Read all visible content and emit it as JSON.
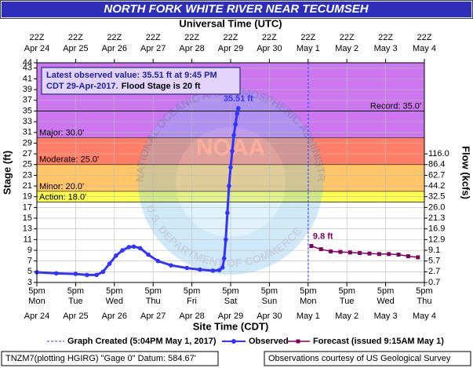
{
  "chart_data": {
    "type": "hydrograph",
    "title": "NORTH FORK WHITE RIVER NEAR TECUMSEH",
    "x2_label": "Universal Time (UTC)",
    "x_label": "Site Time (CDT)",
    "y_label": "Stage (ft)",
    "y2_label": "Flow (kcfs)",
    "xlim": [
      "2017-04-24 17:00",
      "2017-05-04 17:00"
    ],
    "ylim": [
      3,
      44
    ],
    "grid": true,
    "yticks": [
      3,
      5,
      7,
      9,
      11,
      13,
      15,
      17,
      19,
      21,
      23,
      25,
      27,
      29,
      31,
      33,
      35,
      37,
      39,
      41,
      43,
      44
    ],
    "flow_ticks": [
      {
        "value": 3,
        "label": "0.7"
      },
      {
        "value": 5,
        "label": "2.7"
      },
      {
        "value": 7,
        "label": "5.7"
      },
      {
        "value": 9,
        "label": "9.1"
      },
      {
        "value": 11,
        "label": "12.9"
      },
      {
        "value": 13,
        "label": "16.9"
      },
      {
        "value": 15,
        "label": "21.3"
      },
      {
        "value": 17,
        "label": "26.0"
      },
      {
        "value": 19,
        "label": "32.5"
      },
      {
        "value": 21,
        "label": "44.2"
      },
      {
        "value": 23,
        "label": "62.7"
      },
      {
        "value": 25,
        "label": "86.4"
      },
      {
        "value": 27,
        "label": "116.0"
      }
    ],
    "xticks": [
      {
        "value": "2017-04-24 17:00",
        "label": "5pm",
        "day": "Mon",
        "date": "Apr 24"
      },
      {
        "value": "2017-04-25 17:00",
        "label": "5pm",
        "day": "Tue",
        "date": "Apr 25"
      },
      {
        "value": "2017-04-26 17:00",
        "label": "5pm",
        "day": "Wed",
        "date": "Apr 26"
      },
      {
        "value": "2017-04-27 17:00",
        "label": "5pm",
        "day": "Thu",
        "date": "Apr 27"
      },
      {
        "value": "2017-04-28 17:00",
        "label": "5pm",
        "day": "Fri",
        "date": "Apr 28"
      },
      {
        "value": "2017-04-29 17:00",
        "label": "5pm",
        "day": "Sat",
        "date": "Apr 29"
      },
      {
        "value": "2017-04-30 17:00",
        "label": "5pm",
        "day": "Sun",
        "date": "Apr 30"
      },
      {
        "value": "2017-05-01 17:00",
        "label": "5pm",
        "day": "Mon",
        "date": "May 1"
      },
      {
        "value": "2017-05-02 17:00",
        "label": "5pm",
        "day": "Tue",
        "date": "May 2"
      },
      {
        "value": "2017-05-03 17:00",
        "label": "5pm",
        "day": "Wed",
        "date": "May 3"
      },
      {
        "value": "2017-05-04 17:00",
        "label": "5pm",
        "day": "Thu",
        "date": "May 4"
      }
    ],
    "x2ticks": [
      {
        "value": "2017-04-24 17:00",
        "label": "22Z",
        "date": "Apr 24"
      },
      {
        "value": "2017-04-25 17:00",
        "label": "22Z",
        "date": "Apr 25"
      },
      {
        "value": "2017-04-26 17:00",
        "label": "22Z",
        "date": "Apr 26"
      },
      {
        "value": "2017-04-27 17:00",
        "label": "22Z",
        "date": "Apr 27"
      },
      {
        "value": "2017-04-28 17:00",
        "label": "22Z",
        "date": "Apr 28"
      },
      {
        "value": "2017-04-29 17:00",
        "label": "22Z",
        "date": "Apr 29"
      },
      {
        "value": "2017-04-30 17:00",
        "label": "22Z",
        "date": "Apr 30"
      },
      {
        "value": "2017-05-01 17:00",
        "label": "22Z",
        "date": "May 1"
      },
      {
        "value": "2017-05-02 17:00",
        "label": "22Z",
        "date": "May 2"
      },
      {
        "value": "2017-05-03 17:00",
        "label": "22Z",
        "date": "May 3"
      },
      {
        "value": "2017-05-04 17:00",
        "label": "22Z",
        "date": "May 4"
      }
    ],
    "flood_categories": [
      {
        "label": "Action: 18.0'",
        "value": 18,
        "color": "#ffff4d"
      },
      {
        "label": "Minor: 20.0'",
        "value": 20,
        "color": "#ffc566"
      },
      {
        "label": "Moderate: 25.0'",
        "value": 25,
        "color": "#ff7f66"
      },
      {
        "label": "Major: 30.0'",
        "value": 30,
        "color": "#cc77f0"
      }
    ],
    "record": {
      "label": "Record: 35.0'",
      "value": 35
    },
    "graph_created": {
      "x": "2017-05-01 17:04",
      "label": "Graph Created (5:04PM May 1, 2017)"
    },
    "series": [
      {
        "name": "Observed",
        "color": "#3333ff",
        "x": [
          "2017-04-24 17:00",
          "2017-04-25 05:00",
          "2017-04-25 17:00",
          "2017-04-26 00:00",
          "2017-04-26 06:00",
          "2017-04-26 10:00",
          "2017-04-26 14:00",
          "2017-04-26 18:00",
          "2017-04-26 22:00",
          "2017-04-27 02:00",
          "2017-04-27 05:00",
          "2017-04-27 09:00",
          "2017-04-27 14:00",
          "2017-04-27 20:00",
          "2017-04-28 04:00",
          "2017-04-28 14:00",
          "2017-04-28 22:00",
          "2017-04-29 06:00",
          "2017-04-29 10:00",
          "2017-04-29 12:00",
          "2017-04-29 13:00",
          "2017-04-29 14:00",
          "2017-04-29 15:00",
          "2017-04-29 16:00",
          "2017-04-29 17:00",
          "2017-04-29 18:00",
          "2017-04-29 19:00",
          "2017-04-29 20:00",
          "2017-04-29 21:00",
          "2017-04-29 21:45"
        ],
        "values": [
          4.9,
          4.7,
          4.6,
          4.4,
          4.4,
          5.0,
          6.5,
          8.0,
          9.0,
          9.6,
          9.7,
          9.4,
          8.2,
          7.0,
          6.2,
          5.7,
          5.4,
          5.2,
          5.3,
          5.8,
          7.5,
          11,
          16,
          21,
          24.5,
          27.5,
          30.5,
          32.5,
          34.5,
          35.51
        ],
        "value_labels": [
          null,
          null,
          null,
          null,
          null,
          null,
          null,
          null,
          null,
          null,
          null,
          null,
          null,
          null,
          null,
          null,
          null,
          null,
          null,
          null,
          null,
          null,
          null,
          null,
          null,
          null,
          null,
          null,
          null,
          "35.51 ft"
        ]
      },
      {
        "name": "Forecast (issued 9:15AM May 1)",
        "color": "#800060",
        "x": [
          "2017-05-01 19:00",
          "2017-05-02 01:00",
          "2017-05-02 07:00",
          "2017-05-02 13:00",
          "2017-05-02 19:00",
          "2017-05-03 01:00",
          "2017-05-03 07:00",
          "2017-05-03 13:00",
          "2017-05-03 19:00",
          "2017-05-04 01:00",
          "2017-05-04 07:00",
          "2017-05-04 13:00"
        ],
        "values": [
          9.8,
          9.2,
          8.8,
          8.7,
          8.6,
          8.5,
          8.4,
          8.3,
          8.3,
          8.2,
          7.9,
          7.7
        ],
        "value_labels": [
          "9.8 ft",
          null,
          null,
          null,
          null,
          null,
          null,
          null,
          null,
          null,
          null,
          null
        ]
      }
    ],
    "info_box": {
      "line1": "Latest observed value: 35.51 ft at 9:45 PM",
      "line2a": "CDT 29-Apr-2017.",
      "line2b": "Flood Stage is 20 ft"
    },
    "watermark": {
      "top": "NATIONAL OCEANIC AND ATMOSPHERIC ADMINISTRATION",
      "center": "NOAA",
      "bottom": "U.S. DEPARTMENT OF COMMERCE"
    },
    "footer_left": "TNZM7(plotting HGIRG) \"Gage 0\" Datum: 584.67'",
    "footer_right": "Observations courtesy of US Geological Survey"
  }
}
